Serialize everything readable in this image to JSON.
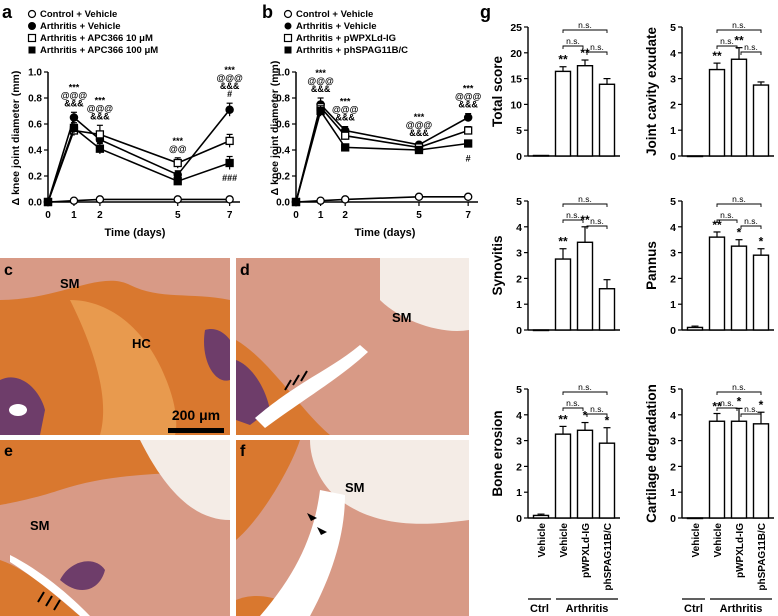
{
  "panels": {
    "a": {
      "letter": "a",
      "legend": [
        "Control + Vehicle",
        "Arthritis + Vehicle",
        "Arthritis + APC366 10 μM",
        "Arthritis + APC366 100 μM"
      ],
      "ylabel": "Δ knee joint diameter (mm)",
      "xlabel": "Time (days)",
      "annotations": [
        {
          "day": 1,
          "lines": [
            "***",
            "@@@",
            "&&&"
          ]
        },
        {
          "day": 2,
          "lines": [
            "***",
            "@@@",
            "&&&"
          ]
        },
        {
          "day": 5,
          "lines": [
            "***",
            "@@"
          ]
        },
        {
          "day": 7,
          "lines": [
            "***",
            "@@@",
            "&&&",
            "#"
          ]
        },
        {
          "day": 7,
          "lines": [
            "###"
          ],
          "below": true
        }
      ]
    },
    "b": {
      "letter": "b",
      "legend": [
        "Control + Vehicle",
        "Arthritis + Vehicle",
        "Arthritis + pWPXLd-IG",
        "Arthritis + phSPAG11B/C"
      ],
      "ylabel": "Δ knee joint diameter (mm)",
      "xlabel": "Time (days)",
      "annotations": [
        {
          "day": 1,
          "lines": [
            "***",
            "@@@",
            "&&&"
          ]
        },
        {
          "day": 2,
          "lines": [
            "***",
            "@@@",
            "&&&"
          ]
        },
        {
          "day": 5,
          "lines": [
            "***",
            "@@@",
            "&&&"
          ]
        },
        {
          "day": 7,
          "lines": [
            "***",
            "@@@",
            "&&&"
          ]
        },
        {
          "day": 7,
          "lines": [
            "#"
          ],
          "below": true
        }
      ]
    },
    "g": {
      "letter": "g",
      "group_labels": {
        "ctrl": "Ctrl",
        "arthritis": "Arthritis"
      },
      "x_labels": [
        "Vehicle",
        "Vehicle",
        "pWPXLd-IG",
        "phSPAG11B/C"
      ],
      "ns": "n.s."
    }
  },
  "micro": [
    {
      "letter": "c",
      "labels": [
        "SM",
        "HC"
      ],
      "scale_bar": "200 μm"
    },
    {
      "letter": "d",
      "labels": [
        "SM"
      ]
    },
    {
      "letter": "e",
      "labels": [
        "SM"
      ]
    },
    {
      "letter": "f",
      "labels": [
        "SM"
      ]
    }
  ],
  "colors": {
    "tissue_orange": "#d9782f",
    "tissue_pink": "#d89a86",
    "marrow": "#6e3d6a",
    "fat": "#f4ece6",
    "fill_open": "#ffffff",
    "fill_filled": "#000000"
  },
  "chart_data": [
    {
      "type": "line",
      "panel": "a",
      "x": [
        0,
        1,
        2,
        5,
        7
      ],
      "xlim": [
        0,
        7.4
      ],
      "ylim": [
        0,
        1.0
      ],
      "yticks": [
        0.0,
        0.2,
        0.4,
        0.6,
        0.8,
        1.0
      ],
      "series": [
        {
          "name": "Control + Vehicle",
          "marker": "open-circle",
          "values": [
            0.0,
            0.01,
            0.02,
            0.02,
            0.02
          ],
          "err": [
            0,
            0.01,
            0.01,
            0.01,
            0.01
          ]
        },
        {
          "name": "Arthritis + Vehicle",
          "marker": "filled-circle",
          "values": [
            0.0,
            0.65,
            0.48,
            0.21,
            0.71
          ],
          "err": [
            0,
            0.04,
            0.04,
            0.03,
            0.05
          ]
        },
        {
          "name": "Arthritis + APC366 10 μM",
          "marker": "open-square",
          "values": [
            0.0,
            0.55,
            0.52,
            0.3,
            0.47
          ],
          "err": [
            0,
            0.04,
            0.07,
            0.04,
            0.05
          ]
        },
        {
          "name": "Arthritis + APC366 100 μM",
          "marker": "filled-square",
          "values": [
            0.0,
            0.57,
            0.41,
            0.16,
            0.3
          ],
          "err": [
            0,
            0.04,
            0.04,
            0.02,
            0.05
          ]
        }
      ]
    },
    {
      "type": "line",
      "panel": "b",
      "x": [
        0,
        1,
        2,
        5,
        7
      ],
      "xlim": [
        0,
        7.4
      ],
      "ylim": [
        0,
        1.0
      ],
      "yticks": [
        0.0,
        0.2,
        0.4,
        0.6,
        0.8,
        1.0
      ],
      "series": [
        {
          "name": "Control + Vehicle",
          "marker": "open-circle",
          "values": [
            0.0,
            0.01,
            0.02,
            0.04,
            0.04
          ],
          "err": [
            0,
            0.01,
            0.01,
            0.01,
            0.01
          ]
        },
        {
          "name": "Arthritis + Vehicle",
          "marker": "filled-circle",
          "values": [
            0.0,
            0.75,
            0.55,
            0.44,
            0.65
          ],
          "err": [
            0,
            0.05,
            0.03,
            0.02,
            0.03
          ]
        },
        {
          "name": "Arthritis + pWPXLd-IG",
          "marker": "open-square",
          "values": [
            0.0,
            0.73,
            0.51,
            0.42,
            0.55
          ],
          "err": [
            0,
            0.04,
            0.03,
            0.02,
            0.03
          ]
        },
        {
          "name": "Arthritis + phSPAG11B/C",
          "marker": "filled-square",
          "values": [
            0.0,
            0.7,
            0.42,
            0.4,
            0.45
          ],
          "err": [
            0,
            0.04,
            0.02,
            0.02,
            0.02
          ]
        }
      ]
    },
    {
      "type": "bar",
      "panel": "g",
      "metric": "Total score",
      "categories": [
        "Vehicle",
        "Vehicle",
        "pWPXLd-IG",
        "phSPAG11B/C"
      ],
      "values": [
        0.1,
        16.4,
        17.5,
        13.9
      ],
      "err": [
        0,
        0.9,
        1.1,
        1.1
      ],
      "ylim": [
        0,
        25
      ],
      "yticks": [
        0,
        5,
        10,
        15,
        20,
        25
      ],
      "stars": [
        "",
        "**",
        "**",
        ""
      ]
    },
    {
      "type": "bar",
      "panel": "g",
      "metric": "Joint cavity exudate",
      "categories": [
        "Vehicle",
        "Vehicle",
        "pWPXLd-IG",
        "phSPAG11B/C"
      ],
      "values": [
        0,
        3.35,
        3.75,
        2.75
      ],
      "err": [
        0,
        0.25,
        0.45,
        0.12
      ],
      "ylim": [
        0,
        5
      ],
      "yticks": [
        0,
        1,
        2,
        3,
        4,
        5
      ],
      "stars": [
        "",
        "**",
        "**",
        ""
      ]
    },
    {
      "type": "bar",
      "panel": "g",
      "metric": "Synovitis",
      "categories": [
        "Vehicle",
        "Vehicle",
        "pWPXLd-IG",
        "phSPAG11B/C"
      ],
      "values": [
        0,
        2.75,
        3.4,
        1.6
      ],
      "err": [
        0,
        0.4,
        0.6,
        0.35
      ],
      "ylim": [
        0,
        5
      ],
      "yticks": [
        0,
        1,
        2,
        3,
        4,
        5
      ],
      "stars": [
        "",
        "**",
        "**",
        ""
      ]
    },
    {
      "type": "bar",
      "panel": "g",
      "metric": "Pannus",
      "categories": [
        "Vehicle",
        "Vehicle",
        "pWPXLd-IG",
        "phSPAG11B/C"
      ],
      "values": [
        0.1,
        3.6,
        3.25,
        2.9
      ],
      "err": [
        0.05,
        0.2,
        0.25,
        0.25
      ],
      "ylim": [
        0,
        5
      ],
      "yticks": [
        0,
        1,
        2,
        3,
        4,
        5
      ],
      "stars": [
        "",
        "**",
        "*",
        "*"
      ]
    },
    {
      "type": "bar",
      "panel": "g",
      "metric": "Bone erosion",
      "categories": [
        "Vehicle",
        "Vehicle",
        "pWPXLd-IG",
        "phSPAG11B/C"
      ],
      "values": [
        0.1,
        3.25,
        3.4,
        2.9
      ],
      "err": [
        0.05,
        0.3,
        0.3,
        0.6
      ],
      "ylim": [
        0,
        5
      ],
      "yticks": [
        0,
        1,
        2,
        3,
        4,
        5
      ],
      "stars": [
        "",
        "**",
        "*",
        "*"
      ]
    },
    {
      "type": "bar",
      "panel": "g",
      "metric": "Cartilage degradation",
      "categories": [
        "Vehicle",
        "Vehicle",
        "pWPXLd-IG",
        "phSPAG11B/C"
      ],
      "values": [
        0,
        3.75,
        3.75,
        3.65
      ],
      "err": [
        0,
        0.3,
        0.5,
        0.45
      ],
      "ylim": [
        0,
        5
      ],
      "yticks": [
        0,
        1,
        2,
        3,
        4,
        5
      ],
      "stars": [
        "",
        "**",
        "*",
        "*"
      ]
    }
  ]
}
